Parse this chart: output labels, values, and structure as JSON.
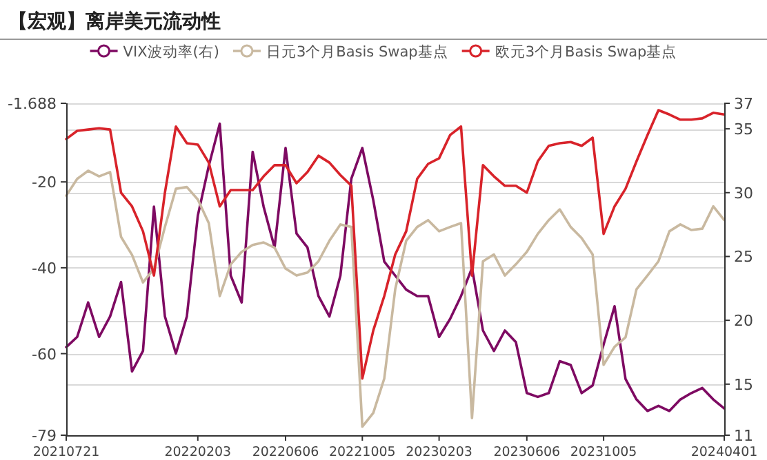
{
  "chart_data": {
    "type": "line",
    "title": "【宏观】离岸美元流动性",
    "categories": [
      "20210721",
      null,
      null,
      null,
      null,
      null,
      null,
      null,
      null,
      null,
      null,
      null,
      "20220203",
      null,
      null,
      null,
      null,
      null,
      null,
      null,
      "20220606",
      null,
      null,
      null,
      null,
      null,
      null,
      "20221005",
      null,
      null,
      null,
      null,
      null,
      null,
      "20230203",
      null,
      null,
      null,
      null,
      null,
      null,
      null,
      "20230606",
      null,
      null,
      null,
      null,
      null,
      null,
      "20231005",
      null,
      null,
      null,
      null,
      null,
      null,
      null,
      null,
      null,
      null,
      "20240401"
    ],
    "series": [
      {
        "name": "VIX波动率(右)",
        "color": "#7e0a62",
        "axis": "y2",
        "values": [
          17.9,
          18.7,
          21.4,
          18.7,
          20.3,
          23.0,
          16.0,
          17.6,
          28.9,
          20.3,
          17.4,
          20.3,
          28.2,
          32.1,
          35.4,
          23.5,
          21.4,
          33.2,
          28.9,
          25.7,
          33.5,
          26.8,
          25.7,
          21.9,
          20.3,
          23.5,
          31.1,
          33.5,
          29.4,
          24.6,
          23.5,
          22.4,
          21.9,
          21.9,
          18.7,
          20.1,
          21.9,
          24.1,
          19.2,
          17.6,
          19.2,
          18.3,
          14.3,
          14.0,
          14.3,
          16.8,
          16.5,
          14.3,
          14.9,
          18.1,
          21.1,
          15.4,
          13.8,
          12.9,
          13.3,
          12.9,
          13.8,
          14.3,
          14.7,
          13.8,
          13.1
        ]
      },
      {
        "name": "日元3个月Basis Swap基点",
        "color": "#c9b9a0",
        "values": [
          -23.2,
          -19.3,
          -17.4,
          -18.7,
          -17.7,
          -32.8,
          -37.0,
          -43.4,
          -40.2,
          -30.5,
          -21.6,
          -21.2,
          -24.1,
          -29.6,
          -46.6,
          -39.2,
          -36.3,
          -34.7,
          -34.1,
          -35.3,
          -40.2,
          -41.8,
          -41.1,
          -38.5,
          -33.7,
          -29.9,
          -30.5,
          -77.0,
          -73.8,
          -65.8,
          -45.0,
          -33.7,
          -30.5,
          -28.9,
          -31.5,
          -30.5,
          -29.6,
          -75.0,
          -38.5,
          -36.9,
          -41.8,
          -39.2,
          -36.3,
          -32.1,
          -28.9,
          -26.4,
          -30.5,
          -33.1,
          -36.9,
          -62.6,
          -58.4,
          -56.2,
          -45.0,
          -41.8,
          -38.5,
          -31.5,
          -29.9,
          -31.2,
          -30.9,
          -25.7,
          -28.9
        ]
      },
      {
        "name": "欧元3个月Basis Swap基点",
        "color": "#d8232a",
        "values": [
          -10.0,
          -8.1,
          -7.8,
          -7.5,
          -7.8,
          -22.5,
          -25.7,
          -31.5,
          -41.8,
          -22.5,
          -7.1,
          -11.0,
          -11.3,
          -15.5,
          -25.7,
          -21.9,
          -21.9,
          -21.9,
          -18.7,
          -16.1,
          -16.1,
          -20.3,
          -17.7,
          -13.9,
          -15.5,
          -18.4,
          -20.9,
          -65.8,
          -54.6,
          -46.6,
          -36.9,
          -31.5,
          -19.3,
          -15.8,
          -14.5,
          -9.1,
          -7.1,
          -41.8,
          -16.1,
          -18.7,
          -20.9,
          -20.9,
          -22.5,
          -15.2,
          -11.6,
          -11.0,
          -10.7,
          -11.6,
          -9.7,
          -32.1,
          -25.7,
          -21.6,
          -15.2,
          -9.1,
          -3.3,
          -4.3,
          -5.5,
          -5.5,
          -5.2,
          -3.9,
          -4.3
        ]
      }
    ],
    "ylim": [
      -79,
      -1.688
    ],
    "yticks": [
      -79,
      -60,
      -40,
      -20,
      -1.688
    ],
    "y2lim": [
      11,
      37
    ],
    "y2ticks": [
      11,
      15,
      20,
      25,
      30,
      35,
      37
    ],
    "grid": "y",
    "legend": "top"
  }
}
